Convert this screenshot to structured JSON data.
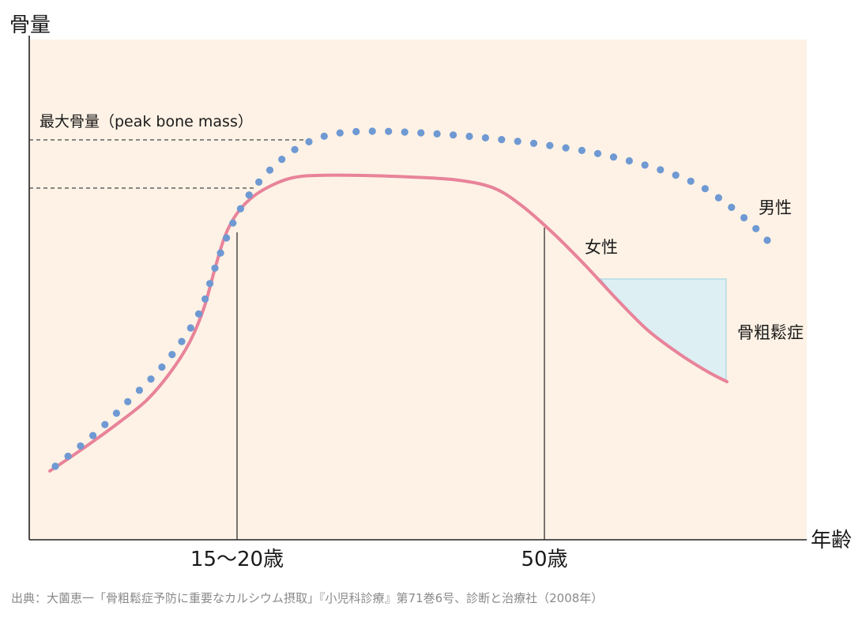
{
  "chart_data": {
    "type": "line",
    "ylabel": "骨量",
    "xlabel": "年齢",
    "x_ticks": [
      "15〜20歳",
      "50歳"
    ],
    "peak_label": "最大骨量（peak bone mass）",
    "osteoporosis_label": "骨粗鬆症",
    "series": [
      {
        "name": "男性",
        "style": "dotted",
        "color": "#6f99d3",
        "points": [
          [
            70,
            590
          ],
          [
            95,
            570
          ],
          [
            130,
            540
          ],
          [
            165,
            505
          ],
          [
            200,
            470
          ],
          [
            230,
            432
          ],
          [
            255,
            390
          ],
          [
            270,
            345
          ],
          [
            285,
            305
          ],
          [
            300,
            272
          ],
          [
            320,
            240
          ],
          [
            345,
            212
          ],
          [
            380,
            185
          ],
          [
            420,
            170
          ],
          [
            470,
            166
          ],
          [
            530,
            168
          ],
          [
            600,
            173
          ],
          [
            680,
            182
          ],
          [
            750,
            193
          ],
          [
            820,
            210
          ],
          [
            880,
            232
          ],
          [
            920,
            258
          ],
          [
            950,
            283
          ],
          [
            972,
            305
          ]
        ]
      },
      {
        "name": "女性",
        "style": "solid",
        "color": "#e8839a",
        "points": [
          [
            63,
            596
          ],
          [
            90,
            578
          ],
          [
            120,
            557
          ],
          [
            150,
            535
          ],
          [
            185,
            507
          ],
          [
            215,
            472
          ],
          [
            240,
            433
          ],
          [
            258,
            390
          ],
          [
            272,
            340
          ],
          [
            285,
            298
          ],
          [
            300,
            270
          ],
          [
            320,
            249
          ],
          [
            345,
            234
          ],
          [
            370,
            225
          ],
          [
            400,
            222
          ],
          [
            460,
            222
          ],
          [
            520,
            224
          ],
          [
            580,
            228
          ],
          [
            625,
            238
          ],
          [
            660,
            260
          ],
          [
            700,
            295
          ],
          [
            740,
            335
          ],
          [
            780,
            378
          ],
          [
            820,
            418
          ],
          [
            860,
            448
          ],
          [
            895,
            470
          ],
          [
            920,
            483
          ]
        ]
      }
    ]
  },
  "source": "出典：大薗恵一「骨粗鬆症予防に重要なカルシウム摂取」『小児科診療』第71巻6号、診断と治療社（2008年）",
  "colors": {
    "plot_bg": "#fdf2e5",
    "osteoporosis_fill": "#ddeff3",
    "osteoporosis_stroke": "#a8d7e3",
    "axis": "#222222",
    "dash": "#444444"
  }
}
